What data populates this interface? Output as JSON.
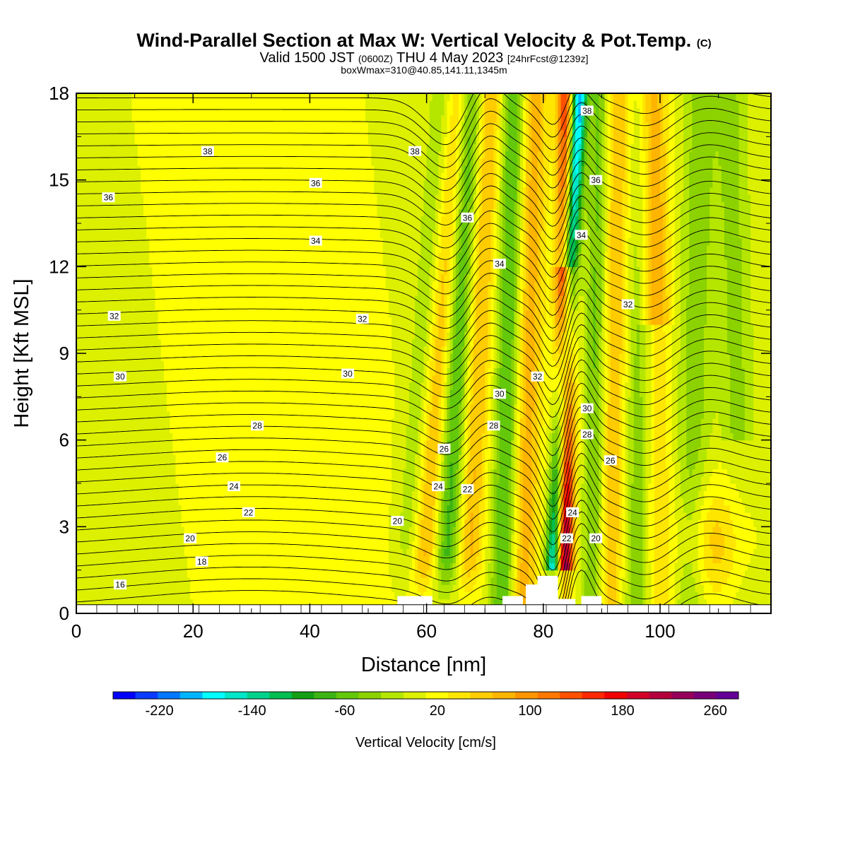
{
  "title": {
    "main": "Wind-Parallel Section at Max W: Vertical Velocity & Pot.Temp.",
    "copyright": "(C)",
    "valid_prefix": "Valid 1500 JST",
    "valid_zulu": "(0600Z)",
    "valid_date": "THU 4 May 2023",
    "forecast": "[24hrFcst@1239z]",
    "box_info": "boxWmax=310@40.85,141.11,1345m"
  },
  "chart_data": {
    "type": "heatmap",
    "xlabel": "Distance [nm]",
    "ylabel": "Height [Kft MSL]",
    "xlim": [
      0,
      119
    ],
    "ylim": [
      0,
      18
    ],
    "x_ticks": [
      0,
      20,
      40,
      60,
      80,
      100
    ],
    "y_ticks": [
      0,
      3,
      6,
      9,
      12,
      15,
      18
    ],
    "colorbar": {
      "label": "Vertical Velocity [cm/s]",
      "tick_labels": [
        "-220",
        "-140",
        "-60",
        "20",
        "100",
        "180",
        "260"
      ],
      "tick_values": [
        -220,
        -140,
        -60,
        20,
        100,
        180,
        260
      ],
      "range": [
        -260,
        280
      ],
      "colors": [
        "#0000ff",
        "#0a3cff",
        "#0078ff",
        "#00b4ff",
        "#00ffff",
        "#00e6c8",
        "#00d28c",
        "#00be50",
        "#14a014",
        "#3cb414",
        "#64c80a",
        "#8cd200",
        "#b4e600",
        "#dcf000",
        "#ffff00",
        "#ffe600",
        "#ffcc00",
        "#ffb400",
        "#ff9600",
        "#ff7800",
        "#ff5000",
        "#ff2800",
        "#f00000",
        "#d20028",
        "#b4003c",
        "#96005a",
        "#780078",
        "#640096"
      ]
    },
    "theta_contours": {
      "units": "C",
      "levels_labeled": [
        16,
        18,
        20,
        22,
        24,
        26,
        28,
        30,
        32,
        34,
        36,
        38
      ],
      "labels": [
        {
          "text": "16",
          "x": 7.5,
          "y": 1.0
        },
        {
          "text": "18",
          "x": 21.5,
          "y": 1.8
        },
        {
          "text": "20",
          "x": 19.5,
          "y": 2.6
        },
        {
          "text": "22",
          "x": 29.5,
          "y": 3.5
        },
        {
          "text": "24",
          "x": 27.0,
          "y": 4.4
        },
        {
          "text": "26",
          "x": 25.0,
          "y": 5.4
        },
        {
          "text": "28",
          "x": 31.0,
          "y": 6.5
        },
        {
          "text": "30",
          "x": 7.5,
          "y": 8.2
        },
        {
          "text": "32",
          "x": 6.5,
          "y": 10.3
        },
        {
          "text": "34",
          "x": 41.0,
          "y": 12.9
        },
        {
          "text": "36",
          "x": 5.5,
          "y": 14.4
        },
        {
          "text": "36",
          "x": 41.0,
          "y": 14.9
        },
        {
          "text": "38",
          "x": 22.5,
          "y": 16.0
        },
        {
          "text": "30",
          "x": 46.5,
          "y": 8.3
        },
        {
          "text": "32",
          "x": 49.0,
          "y": 10.2
        },
        {
          "text": "20",
          "x": 55.0,
          "y": 3.2
        },
        {
          "text": "24",
          "x": 62.0,
          "y": 4.4
        },
        {
          "text": "26",
          "x": 63.0,
          "y": 5.7
        },
        {
          "text": "22",
          "x": 67.0,
          "y": 4.3
        },
        {
          "text": "28",
          "x": 71.5,
          "y": 6.5
        },
        {
          "text": "30",
          "x": 72.5,
          "y": 7.6
        },
        {
          "text": "32",
          "x": 79.0,
          "y": 8.2
        },
        {
          "text": "34",
          "x": 72.5,
          "y": 12.1
        },
        {
          "text": "36",
          "x": 67.0,
          "y": 13.7
        },
        {
          "text": "38",
          "x": 58.0,
          "y": 16.0
        },
        {
          "text": "22",
          "x": 84.0,
          "y": 2.6
        },
        {
          "text": "24",
          "x": 85.0,
          "y": 3.5
        },
        {
          "text": "28",
          "x": 87.5,
          "y": 6.2
        },
        {
          "text": "30",
          "x": 87.5,
          "y": 7.1
        },
        {
          "text": "26",
          "x": 91.5,
          "y": 5.3
        },
        {
          "text": "20",
          "x": 89.0,
          "y": 2.6
        },
        {
          "text": "32",
          "x": 94.5,
          "y": 10.7
        },
        {
          "text": "34",
          "x": 86.5,
          "y": 13.1
        },
        {
          "text": "36",
          "x": 89.0,
          "y": 15.0
        },
        {
          "text": "38",
          "x": 87.5,
          "y": 17.4
        }
      ]
    },
    "terrain_top_kft": [
      {
        "x": 55,
        "h": 0.6
      },
      {
        "x": 61,
        "h": 0.3
      },
      {
        "x": 73,
        "h": 0.6
      },
      {
        "x": 77,
        "h": 1.0
      },
      {
        "x": 79,
        "h": 1.3
      },
      {
        "x": 82,
        "h": 0.5
      },
      {
        "x": 86.5,
        "h": 0.6
      }
    ]
  }
}
